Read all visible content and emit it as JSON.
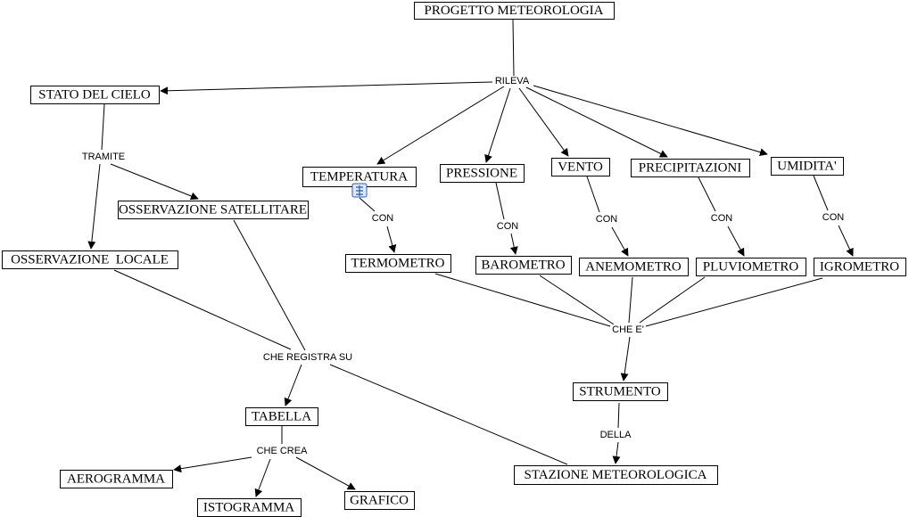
{
  "nodes": [
    {
      "label": "PROGETTO METEOROLOGIA"
    },
    {
      "label": "STATO DEL CIELO"
    },
    {
      "label": "TEMPERATURA"
    },
    {
      "label": "PRESSIONE"
    },
    {
      "label": "VENTO"
    },
    {
      "label": "PRECIPITAZIONI"
    },
    {
      "label": "UMIDITA'"
    },
    {
      "label": "OSSERVAZIONE SATELLITARE"
    },
    {
      "label": "OSSERVAZIONE  LOCALE"
    },
    {
      "label": "TERMOMETRO"
    },
    {
      "label": "BAROMETRO"
    },
    {
      "label": "ANEMOMETRO"
    },
    {
      "label": "PLUVIOMETRO"
    },
    {
      "label": "IGROMETRO"
    },
    {
      "label": "STRUMENTO"
    },
    {
      "label": "TABELLA"
    },
    {
      "label": "STAZIONE METEOROLOGICA"
    },
    {
      "label": "AEROGRAMMA"
    },
    {
      "label": "ISTOGRAMMA"
    },
    {
      "label": "GRAFICO"
    }
  ],
  "links": [
    {
      "label": "RILEVA"
    },
    {
      "label": "TRAMITE"
    },
    {
      "label": "CON"
    },
    {
      "label": "CON"
    },
    {
      "label": "CON"
    },
    {
      "label": "CON"
    },
    {
      "label": "CON"
    },
    {
      "label": "CHE E'"
    },
    {
      "label": "CHE REGISTRA SU"
    },
    {
      "label": "DELLA"
    },
    {
      "label": "CHE CREA"
    }
  ]
}
